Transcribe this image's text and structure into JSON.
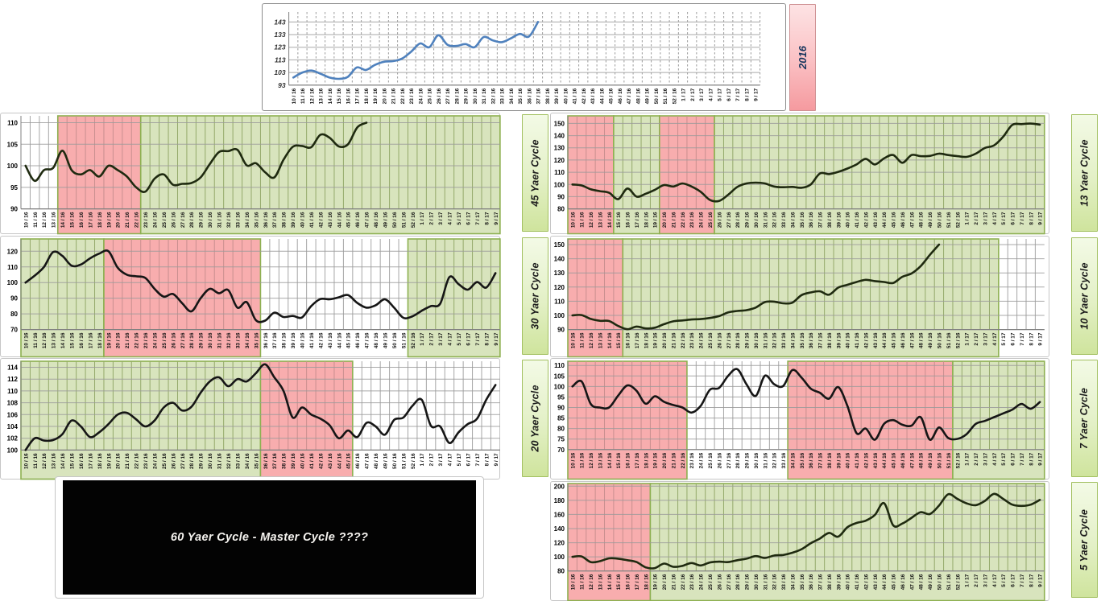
{
  "palette": {
    "red_fill": "#f8adae",
    "green_fill": "#d8e4bd",
    "white_fill": "#ffffff",
    "block_border": "#8db050",
    "vgrid_on_red": "#c98f8f",
    "vgrid_on_green": "#94a96a",
    "vgrid_on_white": "#a6a6a6",
    "hgrid": "#9a9a9a",
    "axis_line": "#808080",
    "blue_line": "#4f81bd",
    "dark_line": "#161616",
    "dark_olive_line": "#1f2a10",
    "tick_text": "#000000",
    "top_tick_text": "#333333"
  },
  "labels": {
    "side_2016": "2016",
    "side_45": "45 Yaer Cycle",
    "side_30": "30 Yaer Cycle",
    "side_20": "20 Yaer Cycle",
    "side_13": "13 Yaer Cycle",
    "side_10": "10 Yaer Cycle",
    "side_7": "7 Yaer Cycle",
    "side_5": "5 Yaer Cycle",
    "master_box": "60 Yaer Cycle - Master Cycle ????"
  },
  "chart_data": {
    "type": "line",
    "categories": [
      "10 / 16",
      "11 / 16",
      "12 / 16",
      "13 / 16",
      "14 / 16",
      "15 / 16",
      "16 / 16",
      "17 / 16",
      "18 / 16",
      "19 / 16",
      "20 / 16",
      "21 / 16",
      "22 / 16",
      "23 / 16",
      "24 / 16",
      "25 / 16",
      "26 / 16",
      "27 / 16",
      "28 / 16",
      "29 / 16",
      "30 / 16",
      "31 / 16",
      "32 / 16",
      "33 / 16",
      "34 / 16",
      "35 / 16",
      "36 / 16",
      "37 / 16",
      "38 / 16",
      "39 / 16",
      "40 / 16",
      "41 / 16",
      "42 / 16",
      "43 / 16",
      "44 / 16",
      "45 / 16",
      "46 / 16",
      "47 / 16",
      "48 / 16",
      "49 / 16",
      "50 / 16",
      "51 / 16",
      "52 / 16",
      "1 / 17",
      "2 / 17",
      "3 / 17",
      "4 / 17",
      "5 / 17",
      "6 / 17",
      "7 / 17",
      "8 / 17",
      "9 / 17"
    ],
    "charts": [
      {
        "id": "top",
        "title": "2016",
        "y_ticks": [
          93,
          103,
          113,
          123,
          133,
          143
        ],
        "ylim": [
          93,
          148
        ],
        "line_color": "blue_line",
        "grid": "dashed",
        "regions": [],
        "values": [
          99,
          103,
          104.5,
          102,
          99,
          98,
          99.5,
          107,
          105,
          109,
          111.5,
          112,
          114,
          119.5,
          126,
          123,
          132.5,
          125,
          124,
          125.5,
          123,
          131,
          128.5,
          127,
          130,
          133.5,
          131.5,
          143
        ]
      },
      {
        "id": "c45",
        "title": "45 Yaer Cycle",
        "y_ticks": [
          90,
          95,
          100,
          105,
          110
        ],
        "ylim": [
          90,
          110
        ],
        "line_color": "dark_olive_line",
        "regions": [
          {
            "from": 0,
            "to": 4,
            "fill": "white"
          },
          {
            "from": 4,
            "to": 13,
            "fill": "red"
          },
          {
            "from": 13,
            "to": 52,
            "fill": "green"
          }
        ],
        "values": [
          100,
          96.5,
          99,
          99.5,
          103.5,
          99,
          98,
          99,
          97.5,
          100,
          99,
          97.5,
          95,
          94,
          97,
          98,
          95.6,
          95.8,
          96,
          97.3,
          100.4,
          103.2,
          103.4,
          103.7,
          100.1,
          100.6,
          98.5,
          97.3,
          101.4,
          104.4,
          104.6,
          104.3,
          107.2,
          106.5,
          104.5,
          105,
          108.9,
          110
        ]
      },
      {
        "id": "c30",
        "title": "30 Yaer Cycle",
        "y_ticks": [
          70,
          80,
          90,
          100,
          110,
          120
        ],
        "ylim": [
          70,
          125
        ],
        "line_color": "dark_line",
        "regions": [
          {
            "from": 0,
            "to": 9,
            "fill": "green"
          },
          {
            "from": 9,
            "to": 26,
            "fill": "red"
          },
          {
            "from": 26,
            "to": 42,
            "fill": "white"
          },
          {
            "from": 42,
            "to": 52,
            "fill": "green"
          }
        ],
        "values": [
          100,
          104.5,
          110,
          119.5,
          117,
          110.8,
          111.5,
          115.5,
          118.5,
          120,
          109.5,
          105,
          104,
          103,
          96,
          91,
          92.7,
          86.8,
          81.6,
          90,
          96,
          93.2,
          95.2,
          84,
          87.5,
          76,
          75.7,
          80.8,
          78,
          78.7,
          77.7,
          85,
          89.5,
          89.3,
          90.6,
          92,
          87,
          84,
          85.5,
          89.3,
          84,
          77.5,
          78.5,
          82,
          85,
          86.5,
          103.5,
          99,
          95.5,
          100.3,
          96.8,
          106
        ]
      },
      {
        "id": "c20",
        "title": "20 Yaer Cycle",
        "y_ticks": [
          100,
          102,
          104,
          106,
          108,
          110,
          112,
          114
        ],
        "ylim": [
          100,
          115.5
        ],
        "line_color": "dark_line",
        "regions": [
          {
            "from": 0,
            "to": 26,
            "fill": "green"
          },
          {
            "from": 26,
            "to": 36,
            "fill": "red"
          },
          {
            "from": 36,
            "to": 52,
            "fill": "white"
          }
        ],
        "values": [
          100,
          102,
          101.6,
          101.7,
          102.7,
          105,
          104,
          102.2,
          103,
          104.4,
          106,
          106.3,
          105.2,
          104,
          105,
          107.2,
          108,
          106.7,
          107.3,
          109.7,
          111.6,
          112.3,
          110.8,
          112,
          111.6,
          113,
          114.5,
          112.3,
          110,
          105.5,
          107.2,
          106,
          105.3,
          104.2,
          102,
          103.3,
          102.2,
          104.6,
          104,
          102.6,
          105.1,
          105.5,
          107.5,
          108.5,
          104.1,
          104,
          101.2,
          103,
          104.4,
          105.3,
          108.5,
          111
        ]
      },
      {
        "id": "c13",
        "title": "13 Yaer Cycle",
        "y_ticks": [
          80,
          90,
          100,
          110,
          120,
          130,
          140,
          150
        ],
        "ylim": [
          80,
          153
        ],
        "line_color": "dark_olive_line",
        "regions": [
          {
            "from": 0,
            "to": 5,
            "fill": "red"
          },
          {
            "from": 5,
            "to": 10,
            "fill": "green"
          },
          {
            "from": 10,
            "to": 16,
            "fill": "red"
          },
          {
            "from": 16,
            "to": 52,
            "fill": "green"
          }
        ],
        "values": [
          100,
          99.2,
          96,
          94.5,
          93.2,
          88,
          96.7,
          90,
          92.4,
          95.6,
          99.5,
          98.3,
          100.8,
          98.3,
          94,
          87.3,
          86.5,
          91.6,
          98,
          100.8,
          101.5,
          100.8,
          98.3,
          97.7,
          98,
          97.3,
          100,
          109,
          108.5,
          110.3,
          113,
          116.4,
          121,
          116.4,
          121.3,
          124.1,
          117.8,
          124.1,
          123.2,
          123.4,
          125.2,
          124.1,
          123.2,
          122.6,
          125.2,
          129.9,
          132,
          139.1,
          148.8,
          149.4,
          149.9,
          149
        ]
      },
      {
        "id": "c10",
        "title": "10 Yaer Cycle",
        "y_ticks": [
          90,
          100,
          110,
          120,
          130,
          140,
          150
        ],
        "ylim": [
          90,
          153
        ],
        "line_color": "dark_olive_line",
        "regions": [
          {
            "from": 0,
            "to": 6,
            "fill": "red"
          },
          {
            "from": 6,
            "to": 47,
            "fill": "green"
          },
          {
            "from": 47,
            "to": 52,
            "fill": "white"
          }
        ],
        "values": [
          100,
          100.2,
          97.5,
          96.2,
          96,
          92.5,
          90.2,
          92.1,
          90.8,
          91.3,
          93.8,
          95.8,
          96.4,
          97.1,
          97.4,
          98.2,
          99.5,
          102.1,
          103.1,
          103.7,
          105.5,
          109.4,
          109.7,
          108.5,
          109,
          114.3,
          116.2,
          117,
          114.6,
          119.6,
          121.6,
          123.6,
          125.1,
          124.2,
          123.6,
          122.9,
          127.3,
          129.6,
          134.8,
          142.7,
          150
        ]
      },
      {
        "id": "c7",
        "title": "7 Yaer Cycle",
        "y_ticks": [
          70,
          75,
          80,
          85,
          90,
          95,
          100,
          105,
          110
        ],
        "ylim": [
          70,
          112
        ],
        "line_color": "dark_line",
        "regions": [
          {
            "from": 0,
            "to": 13,
            "fill": "red"
          },
          {
            "from": 13,
            "to": 24,
            "fill": "white"
          },
          {
            "from": 24,
            "to": 42,
            "fill": "red"
          },
          {
            "from": 42,
            "to": 52,
            "fill": "green"
          }
        ],
        "values": [
          100,
          102.4,
          91.7,
          90,
          90,
          95.7,
          100.5,
          97.9,
          91.8,
          95.3,
          92.7,
          91.2,
          90,
          87.6,
          90.8,
          98.4,
          99.3,
          105.1,
          108.2,
          101,
          95.5,
          105.1,
          101.1,
          100.2,
          107.8,
          104.2,
          99,
          97,
          94.2,
          99.7,
          90.8,
          77.8,
          80,
          74.7,
          82.2,
          84,
          81.8,
          81.4,
          85.4,
          74.7,
          80.5,
          75.5,
          75.1,
          77.3,
          82.2,
          83.6,
          85.4,
          87.2,
          89,
          91.7,
          89.4,
          92.6
        ]
      },
      {
        "id": "c5",
        "title": "5 Yaer Cycle",
        "y_ticks": [
          80,
          100,
          120,
          140,
          160,
          180,
          200
        ],
        "ylim": [
          80,
          208
        ],
        "line_color": "dark_olive_line",
        "regions": [
          {
            "from": 0,
            "to": 9,
            "fill": "red"
          },
          {
            "from": 9,
            "to": 52,
            "fill": "green"
          }
        ],
        "values": [
          100,
          100.6,
          92.6,
          93.9,
          97.9,
          97.4,
          95.3,
          92.6,
          85.1,
          84.1,
          90.5,
          85.9,
          87.3,
          91.3,
          87.8,
          92.1,
          93.2,
          92.6,
          95.3,
          97.4,
          101.1,
          98.5,
          101.9,
          102.7,
          105.9,
          110.8,
          119.3,
          125.9,
          133.9,
          128.6,
          141.9,
          148,
          151.2,
          159.2,
          176,
          144.6,
          147.2,
          155.2,
          163.2,
          160.6,
          172.6,
          188.6,
          182,
          175.8,
          173.1,
          179.2,
          189.2,
          182,
          173.9,
          172.1,
          173.9,
          180.6
        ]
      }
    ]
  }
}
